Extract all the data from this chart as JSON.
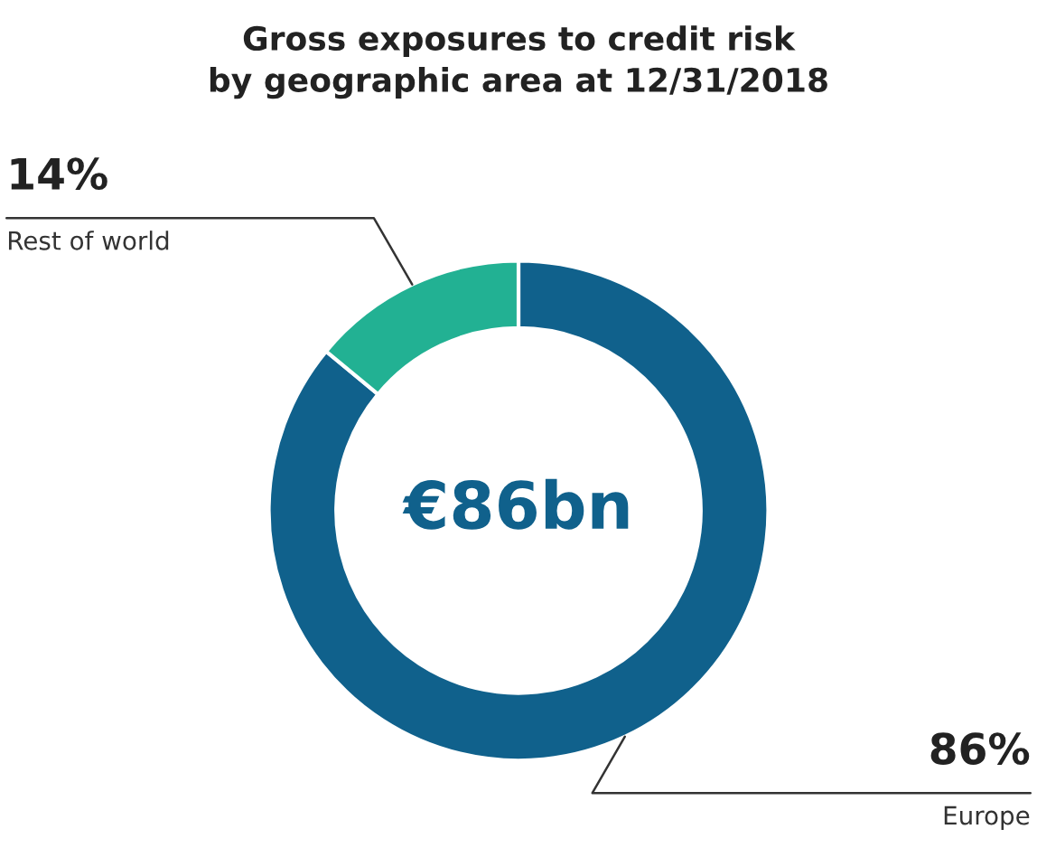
{
  "chart_data": {
    "type": "donut",
    "title": "Gross exposures to credit risk\nby geographic area at 12/31/2018",
    "categories": [
      "Europe",
      "Rest of world"
    ],
    "values": [
      86,
      14
    ],
    "colors": [
      "#10618c",
      "#22b193"
    ],
    "value_labels": [
      "86%",
      "14%"
    ],
    "annotations": [
      "€86bn"
    ],
    "legend": false
  }
}
